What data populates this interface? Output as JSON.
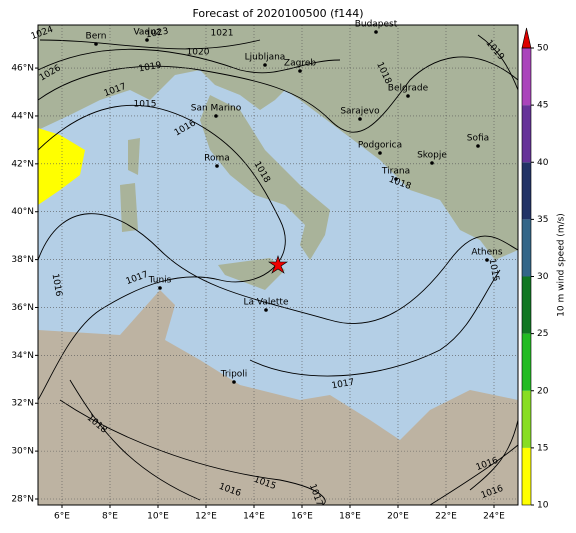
{
  "map": {
    "title": "Forecast of 2020100500 (f144)",
    "lon_ticks": [
      {
        "value": 6,
        "label": "6°E"
      },
      {
        "value": 8,
        "label": "8°E"
      },
      {
        "value": 10,
        "label": "10°E"
      },
      {
        "value": 12,
        "label": "12°E"
      },
      {
        "value": 14,
        "label": "14°E"
      },
      {
        "value": 16,
        "label": "16°E"
      },
      {
        "value": 18,
        "label": "18°E"
      },
      {
        "value": 20,
        "label": "20°E"
      },
      {
        "value": 22,
        "label": "22°E"
      },
      {
        "value": 24,
        "label": "24°E"
      }
    ],
    "lat_ticks": [
      {
        "value": 28,
        "label": "28°N"
      },
      {
        "value": 30,
        "label": "30°N"
      },
      {
        "value": 32,
        "label": "32°N"
      },
      {
        "value": 34,
        "label": "34°N"
      },
      {
        "value": 36,
        "label": "36°N"
      },
      {
        "value": 38,
        "label": "38°N"
      },
      {
        "value": 40,
        "label": "40°N"
      },
      {
        "value": 42,
        "label": "42°N"
      },
      {
        "value": 44,
        "label": "44°N"
      },
      {
        "value": 46,
        "label": "46°N"
      }
    ],
    "cities": [
      "Bern",
      "Vaduz",
      "Budapest",
      "Ljubljana",
      "Zagreb",
      "Belgrade",
      "San Marino",
      "Sarajevo",
      "Sofia",
      "Podgorica",
      "Skopje",
      "Roma",
      "Tirana",
      "Athens",
      "Tunis",
      "La Valette",
      "Tripoli"
    ],
    "isobar_labels": [
      1024,
      1023,
      1021,
      1020,
      1019,
      1026,
      1017,
      1015,
      1016,
      1018,
      1018,
      1019,
      1018,
      1017,
      1016,
      1017,
      1018,
      1015,
      1016,
      1017,
      1016,
      1016,
      1015
    ],
    "colorbar": {
      "label": "10 m wind speed (m/s)",
      "lim": [
        10,
        50
      ],
      "ticks": [
        10,
        15,
        20,
        25,
        30,
        35,
        40,
        45,
        50
      ],
      "colors": [
        "#ffff00",
        "#88dd22",
        "#22bb22",
        "#117722",
        "#336688",
        "#223366",
        "#663399",
        "#aa44bb"
      ],
      "extend_color": "#dd0000"
    }
  }
}
